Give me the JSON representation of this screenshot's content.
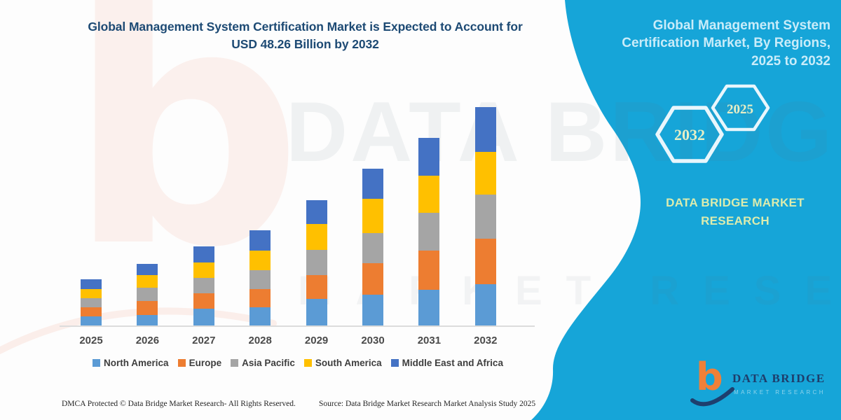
{
  "theme": {
    "accent": "#16a5d8",
    "title_color": "#1d4a74",
    "watermark_salmon": "#ed6a49"
  },
  "header": {
    "title_line1": "Global Management System Certification Market is Expected to Account for",
    "title_line2": "USD 48.26 Billion by 2032"
  },
  "sidebar": {
    "title": "Global Management System Certification Market, By Regions, 2025 to 2032",
    "hexagons": [
      {
        "label": "2032"
      },
      {
        "label": "2025"
      }
    ],
    "brand_line1": "DATA BRIDGE MARKET",
    "brand_line2": "RESEARCH"
  },
  "watermarks": {
    "letter": "b",
    "big_text": "DATA BRIDGE",
    "spaced_text": "MARKET RESEARCH"
  },
  "chart_data": {
    "type": "bar",
    "stacked": true,
    "title": "Global Management System Certification Market is Expected to Account for USD 48.26 Billion by 2032",
    "unit": "USD Billion",
    "categories": [
      "2025",
      "2026",
      "2027",
      "2028",
      "2029",
      "2030",
      "2031",
      "2032"
    ],
    "series": [
      {
        "name": "North America",
        "color": "#5b9bd5",
        "values": [
          2.0,
          2.4,
          3.7,
          4.1,
          5.9,
          6.8,
          7.9,
          9.1
        ]
      },
      {
        "name": "Europe",
        "color": "#ed7d31",
        "values": [
          2.0,
          3.1,
          3.5,
          3.9,
          5.3,
          7.0,
          8.7,
          10.1
        ]
      },
      {
        "name": "Asia Pacific",
        "color": "#a5a5a5",
        "values": [
          2.0,
          2.8,
          3.3,
          4.2,
          5.5,
          6.6,
          8.3,
          9.8
        ]
      },
      {
        "name": "South America",
        "color": "#ffc000",
        "values": [
          2.1,
          2.8,
          3.4,
          4.4,
          5.8,
          7.6,
          8.3,
          9.4
        ]
      },
      {
        "name": "Middle East and Africa",
        "color": "#4472c4",
        "values": [
          2.1,
          2.6,
          3.6,
          4.4,
          5.2,
          6.7,
          8.3,
          9.86
        ]
      }
    ],
    "annotated_total_2032": 48.26,
    "ylim": [
      0,
      50
    ],
    "gridlines": false,
    "y_axis_shown": false,
    "legend_position": "bottom"
  },
  "footer": {
    "dmca": "DMCA Protected © Data Bridge Market Research-  All Rights Reserved.",
    "source": "Source: Data Bridge Market Research  Market Analysis Study 2025"
  },
  "logo": {
    "glyph": "b",
    "name": "DATA BRIDGE",
    "tagline": "MARKET RESEARCH"
  }
}
